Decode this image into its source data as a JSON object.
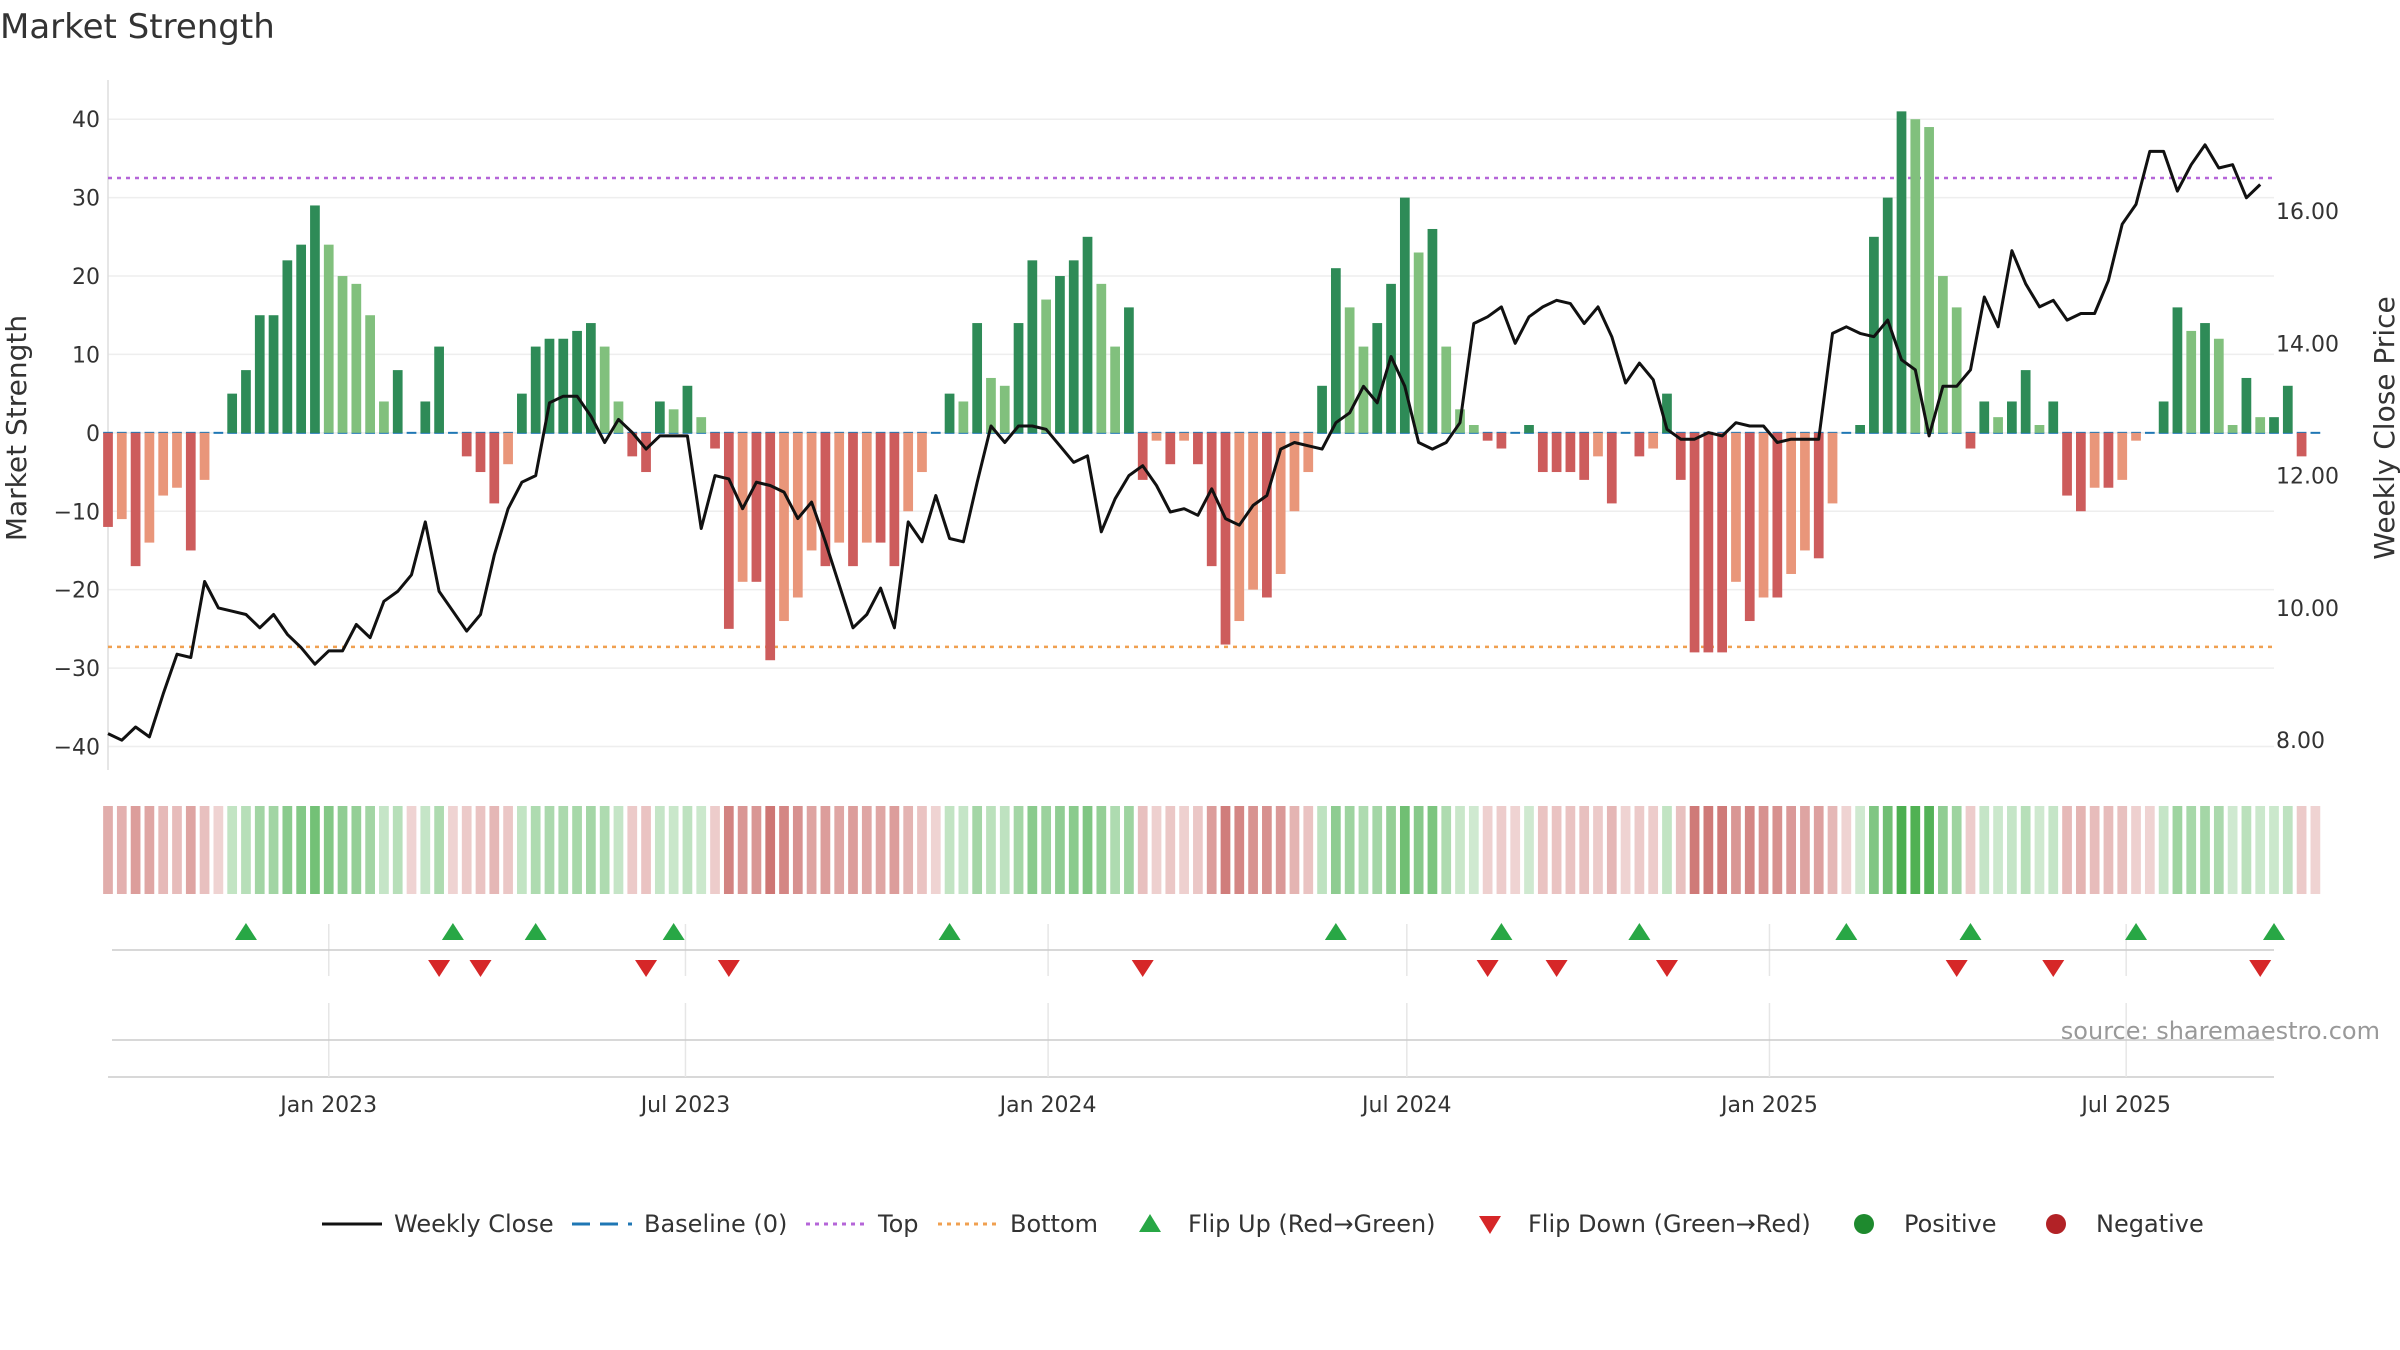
{
  "chart_data": {
    "type": "bar",
    "title": "Market Strength",
    "ylabel": "Market Strength",
    "y2label": "Weekly Close Price",
    "ylim": [
      -43,
      45
    ],
    "y2lim": [
      7.55,
      17.98
    ],
    "yticks": [
      "40",
      "30",
      "20",
      "10",
      "0",
      "−10",
      "−20",
      "−30",
      "−40"
    ],
    "y2ticks": [
      "16.00",
      "14.00",
      "12.00",
      "10.00",
      "8.00"
    ],
    "x_range": [
      "2022-09-11",
      "2025-09-14"
    ],
    "xticks": [
      {
        "date": "2023-01-01",
        "label": "Jan 2023"
      },
      {
        "date": "2023-07-01",
        "label": "Jul 2023"
      },
      {
        "date": "2024-01-01",
        "label": "Jan 2024"
      },
      {
        "date": "2024-07-01",
        "label": "Jul 2024"
      },
      {
        "date": "2025-01-01",
        "label": "Jan 2025"
      },
      {
        "date": "2025-07-01",
        "label": "Jul 2025"
      }
    ],
    "start_date": "2022-09-11",
    "interval_days": 7,
    "strength": [
      -12,
      -11,
      -17,
      -14,
      -8,
      -7,
      -15,
      -6,
      0,
      5,
      8,
      15,
      15,
      22,
      24,
      29,
      24,
      20,
      19,
      15,
      4,
      8,
      0,
      4,
      11,
      0,
      -3,
      -5,
      -9,
      -4,
      5,
      11,
      12,
      12,
      13,
      14,
      11,
      4,
      -3,
      -5,
      4,
      3,
      6,
      2,
      -2,
      -25,
      -19,
      -19,
      -29,
      -24,
      -21,
      -15,
      -17,
      -14,
      -17,
      -14,
      -14,
      -17,
      -10,
      -5,
      0,
      5,
      4,
      14,
      7,
      6,
      14,
      22,
      17,
      20,
      22,
      25,
      19,
      11,
      16,
      -6,
      -1,
      -4,
      -1,
      -4,
      -17,
      -27,
      -24,
      -20,
      -21,
      -18,
      -10,
      -5,
      6,
      21,
      16,
      11,
      14,
      19,
      30,
      23,
      26,
      11,
      3,
      1,
      -1,
      -2,
      0,
      1,
      -5,
      -5,
      -5,
      -6,
      -3,
      -9,
      0,
      -3,
      -2,
      5,
      -6,
      -28,
      -28,
      -28,
      -19,
      -24,
      -21,
      -21,
      -18,
      -15,
      -16,
      -9,
      0,
      1,
      25,
      30,
      41,
      40,
      39,
      20,
      16,
      -2,
      4,
      2,
      4,
      8,
      1,
      4,
      -8,
      -10,
      -7,
      -7,
      -6,
      -1,
      0,
      4,
      16,
      13,
      14,
      12,
      1,
      7,
      2,
      2,
      6,
      -3,
      0
    ],
    "close": [
      8.1,
      8.0,
      8.2,
      8.05,
      8.7,
      9.3,
      9.25,
      10.4,
      10.0,
      9.95,
      9.9,
      9.7,
      9.9,
      9.6,
      9.4,
      9.15,
      9.35,
      9.35,
      9.75,
      9.55,
      10.1,
      10.25,
      10.5,
      11.3,
      10.25,
      9.95,
      9.65,
      9.9,
      10.8,
      11.5,
      11.9,
      12.0,
      13.1,
      13.2,
      13.2,
      12.9,
      12.5,
      12.85,
      12.65,
      12.4,
      12.6,
      12.6,
      12.6,
      11.2,
      12.0,
      11.95,
      11.5,
      11.9,
      11.85,
      11.75,
      11.35,
      11.6,
      11.0,
      10.35,
      9.7,
      9.9,
      10.3,
      9.7,
      11.3,
      11.0,
      11.7,
      11.05,
      11.0,
      11.9,
      12.75,
      12.5,
      12.75,
      12.75,
      12.7,
      12.45,
      12.2,
      12.3,
      11.15,
      11.65,
      12.0,
      12.15,
      11.85,
      11.45,
      11.5,
      11.4,
      11.8,
      11.35,
      11.25,
      11.55,
      11.7,
      12.4,
      12.5,
      12.45,
      12.4,
      12.8,
      12.95,
      13.35,
      13.1,
      13.8,
      13.35,
      12.5,
      12.4,
      12.5,
      12.8,
      14.3,
      14.4,
      14.55,
      14.0,
      14.4,
      14.55,
      14.65,
      14.6,
      14.3,
      14.55,
      14.1,
      13.4,
      13.7,
      13.45,
      12.7,
      12.55,
      12.55,
      12.65,
      12.6,
      12.8,
      12.75,
      12.75,
      12.5,
      12.55,
      12.55,
      12.55,
      14.15,
      14.25,
      14.15,
      14.1,
      14.35,
      13.75,
      13.6,
      12.6,
      13.35,
      13.35,
      13.6,
      14.7,
      14.25,
      15.4,
      14.9,
      14.55,
      14.65,
      14.35,
      14.45,
      14.45,
      14.95,
      15.8,
      16.1,
      16.9,
      16.9,
      16.3,
      16.7,
      17.0,
      16.65,
      16.7,
      16.2,
      16.4
    ],
    "top_level": 32.5,
    "bottom_level": -27.3,
    "flip_up_dates": [
      "2022-11-20",
      "2023-03-05",
      "2023-04-16",
      "2023-06-25",
      "2023-11-12",
      "2024-05-26",
      "2024-08-18",
      "2024-10-27",
      "2025-02-09",
      "2025-04-13",
      "2025-07-06",
      "2025-09-14"
    ],
    "flip_down_dates": [
      "2023-02-26",
      "2023-03-19",
      "2023-06-11",
      "2023-07-23",
      "2024-02-18",
      "2024-08-11",
      "2024-09-15",
      "2024-11-10",
      "2025-04-06",
      "2025-05-25",
      "2025-09-07"
    ],
    "legend": [
      {
        "label": "Weekly Close",
        "color": "#111111",
        "marker": "solid-line"
      },
      {
        "label": "Baseline (0)",
        "color": "#1f77b4",
        "marker": "dashed-line"
      },
      {
        "label": "Top",
        "color": "#b565d8",
        "marker": "dotted-line"
      },
      {
        "label": "Bottom",
        "color": "#f0a050",
        "marker": "dotted-line"
      },
      {
        "label": "Flip Up (Red→Green)",
        "color": "#28a745",
        "marker": "triangle-up"
      },
      {
        "label": "Flip Down (Green→Red)",
        "color": "#d62728",
        "marker": "triangle-down"
      },
      {
        "label": "Positive",
        "color": "#1e8a2e",
        "marker": "circle"
      },
      {
        "label": "Negative",
        "color": "#b22226",
        "marker": "circle"
      }
    ],
    "legend_position": "bottom-center",
    "grid": true
  },
  "source_text": "source: sharemaestro.com",
  "colors": {
    "strong_green": "#2e8b57",
    "light_green": "#81c07d",
    "strong_red": "#cd5c5c",
    "light_red": "#e9967a",
    "band_green": "#4caf50",
    "band_red": "#c0504d"
  }
}
